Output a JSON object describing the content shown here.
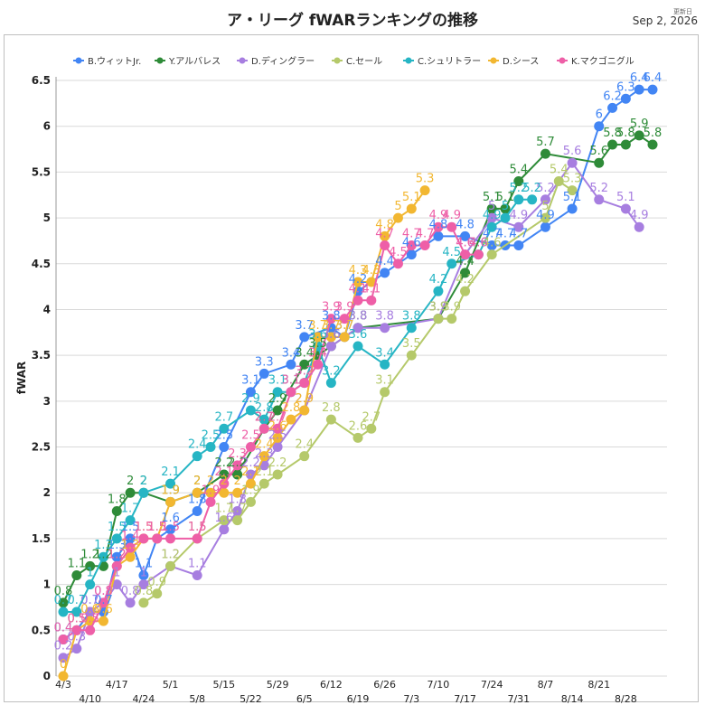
{
  "chart_data": {
    "type": "line",
    "title": "ア・リーグ fWARランキングの推移",
    "updated_label": "更新日",
    "updated_date": "Sep 2, 2026",
    "xlabel": "",
    "ylabel": "fWAR",
    "ylim": [
      0,
      6.5
    ],
    "yticks": [
      0,
      0.5,
      1,
      1.5,
      2,
      2.5,
      3,
      3.5,
      4,
      4.5,
      5,
      5.5,
      6,
      6.5
    ],
    "grid": true,
    "legend_position": "top",
    "x": [
      "4/3",
      "4/6",
      "4/10",
      "4/13",
      "4/17",
      "4/20",
      "4/24",
      "4/27",
      "5/1",
      "5/4",
      "5/8",
      "5/11",
      "5/15",
      "5/18",
      "5/22",
      "5/25",
      "5/29",
      "6/1",
      "6/5",
      "6/8",
      "6/12",
      "6/15",
      "6/19",
      "6/22",
      "6/26",
      "6/29",
      "7/3",
      "7/6",
      "7/10",
      "7/13",
      "7/17",
      "7/20",
      "7/24",
      "7/27",
      "7/31",
      "8/3",
      "8/7",
      "8/10",
      "8/14",
      "8/17",
      "8/21",
      "8/24",
      "8/28",
      "8/31",
      "9/1"
    ],
    "x_tick_labels": [
      "4/3",
      "4/10",
      "4/17",
      "4/24",
      "5/1",
      "5/8",
      "5/15",
      "5/22",
      "5/29",
      "6/5",
      "6/12",
      "6/19",
      "6/26",
      "7/3",
      "7/10",
      "7/17",
      "7/24",
      "7/31",
      "8/7",
      "8/14",
      "8/21",
      "8/28"
    ],
    "series": [
      {
        "name": "B.ウィットJr.",
        "color": "#4285f4",
        "values": [
          0.4,
          0.5,
          0.7,
          0.7,
          1.3,
          1.5,
          1.1,
          1.5,
          1.6,
          null,
          1.8,
          null,
          2.5,
          null,
          3.1,
          3.3,
          null,
          3.4,
          3.7,
          null,
          3.8,
          3.7,
          4.2,
          null,
          4.4,
          null,
          4.6,
          null,
          4.8,
          null,
          4.8,
          null,
          4.7,
          4.7,
          4.7,
          null,
          4.9,
          null,
          5.1,
          null,
          6.0,
          6.2,
          6.3,
          6.4,
          6.4
        ]
      },
      {
        "name": "Y.アルバレス",
        "color": "#2e8b38",
        "values": [
          0.8,
          1.1,
          1.2,
          1.2,
          1.8,
          2.0,
          2.0,
          null,
          1.9,
          null,
          2.0,
          null,
          2.2,
          2.2,
          null,
          2.7,
          2.9,
          null,
          3.4,
          3.5,
          3.6,
          null,
          3.8,
          null,
          null,
          null,
          null,
          null,
          3.9,
          null,
          4.4,
          null,
          5.1,
          5.1,
          5.4,
          null,
          5.7,
          null,
          null,
          null,
          5.6,
          5.8,
          5.8,
          5.9,
          5.8
        ]
      },
      {
        "name": "D.ディングラー",
        "color": "#a77ee0",
        "values": [
          0.2,
          0.3,
          0.7,
          0.8,
          1.0,
          0.8,
          1.0,
          null,
          1.2,
          null,
          1.1,
          null,
          1.6,
          1.8,
          2.2,
          2.3,
          2.5,
          null,
          2.9,
          null,
          3.6,
          null,
          3.8,
          null,
          3.8,
          null,
          null,
          null,
          3.9,
          null,
          4.6,
          null,
          5.0,
          null,
          4.9,
          null,
          5.2,
          null,
          5.6,
          null,
          5.2,
          null,
          5.1,
          4.9,
          null
        ]
      },
      {
        "name": "C.セール",
        "color": "#b5c96a",
        "values": [
          null,
          null,
          null,
          null,
          null,
          null,
          0.8,
          0.9,
          1.2,
          null,
          1.5,
          null,
          1.7,
          1.7,
          1.9,
          2.1,
          2.2,
          null,
          2.4,
          null,
          2.8,
          null,
          2.6,
          2.7,
          3.1,
          null,
          3.5,
          null,
          3.9,
          3.9,
          4.2,
          null,
          4.6,
          null,
          null,
          null,
          5.0,
          5.4,
          5.3,
          null,
          null,
          null,
          null,
          null,
          null
        ]
      },
      {
        "name": "C.シュリトラー",
        "color": "#26b5c4",
        "values": [
          0.7,
          0.7,
          1.0,
          1.3,
          1.5,
          1.7,
          2.0,
          null,
          2.1,
          null,
          2.4,
          2.5,
          2.7,
          null,
          2.9,
          2.8,
          3.1,
          3.1,
          3.2,
          3.6,
          3.2,
          null,
          3.6,
          null,
          3.4,
          null,
          3.8,
          null,
          4.2,
          4.5,
          null,
          4.6,
          4.9,
          5.0,
          5.2,
          5.2,
          null,
          null,
          null,
          null,
          null,
          null,
          null,
          null,
          null
        ]
      },
      {
        "name": "D.シース",
        "color": "#f2b731",
        "values": [
          0.0,
          0.5,
          0.6,
          0.6,
          1.2,
          1.3,
          1.5,
          1.5,
          1.9,
          null,
          2.0,
          2.0,
          2.0,
          2.0,
          2.1,
          2.4,
          2.6,
          2.8,
          2.9,
          3.7,
          3.7,
          3.7,
          4.3,
          4.3,
          4.8,
          5.0,
          5.1,
          5.3,
          null,
          null,
          null,
          null,
          null,
          null,
          null,
          null,
          null,
          null,
          null,
          null,
          null,
          null,
          null,
          null,
          null
        ]
      },
      {
        "name": "K.マクゴニグル",
        "color": "#ee5fa7",
        "values": [
          0.4,
          0.5,
          0.5,
          0.8,
          1.2,
          1.4,
          1.5,
          1.5,
          1.5,
          null,
          1.5,
          1.9,
          2.1,
          2.3,
          2.5,
          2.7,
          2.7,
          3.1,
          3.2,
          3.4,
          3.9,
          3.9,
          4.1,
          4.1,
          4.7,
          4.5,
          4.7,
          4.7,
          4.9,
          4.9,
          4.6,
          4.6,
          null,
          null,
          null,
          null,
          null,
          null,
          null,
          null,
          null,
          null,
          null,
          null,
          null
        ]
      }
    ]
  }
}
